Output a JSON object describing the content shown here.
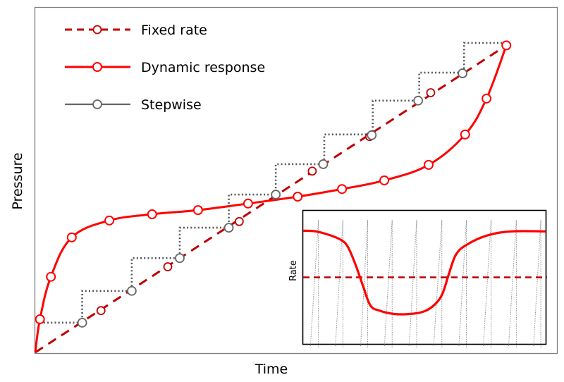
{
  "chart_data": {
    "type": "line",
    "title": "",
    "xlabel": "Time",
    "ylabel": "Pressure",
    "xlim": [
      0,
      100
    ],
    "ylim": [
      0,
      100
    ],
    "grid": false,
    "ticks": "none",
    "legend_position": "top-left",
    "colors": {
      "fixed": "#C00000",
      "dynamic": "#FF0000",
      "stepwise": "#666666",
      "stepwise_dots": "#555555",
      "frame": "#7F7F7F"
    },
    "series": [
      {
        "name": "Fixed rate",
        "style": "dashed",
        "line": [
          [
            0,
            0
          ],
          [
            90.3,
            88.9
          ]
        ],
        "markers": [
          [
            12.6,
            12.1
          ],
          [
            25.4,
            24.8
          ],
          [
            39.1,
            37.9
          ],
          [
            53.1,
            52.5
          ],
          [
            64.1,
            62.5
          ],
          [
            75.8,
            75.2
          ],
          [
            90.3,
            88.9
          ]
        ]
      },
      {
        "name": "Dynamic response",
        "style": "solid",
        "line": [
          [
            0,
            0
          ],
          [
            0.9,
            9.6
          ],
          [
            3.0,
            21.9
          ],
          [
            7.0,
            33.3
          ],
          [
            14.2,
            38.2
          ],
          [
            22.4,
            40.0
          ],
          [
            31.2,
            41.2
          ],
          [
            40.8,
            43.1
          ],
          [
            50.3,
            45.1
          ],
          [
            58.8,
            47.3
          ],
          [
            66.9,
            49.8
          ],
          [
            75.4,
            54.3
          ],
          [
            82.4,
            63.1
          ],
          [
            86.5,
            73.5
          ],
          [
            90.3,
            88.9
          ]
        ],
        "markers": [
          [
            0.9,
            9.6
          ],
          [
            3.0,
            21.9
          ],
          [
            7.0,
            33.3
          ],
          [
            14.2,
            38.2
          ],
          [
            22.4,
            40.0
          ],
          [
            31.2,
            41.2
          ],
          [
            40.8,
            43.1
          ],
          [
            50.3,
            45.1
          ],
          [
            58.8,
            47.3
          ],
          [
            66.9,
            49.8
          ],
          [
            75.4,
            54.3
          ],
          [
            82.4,
            63.1
          ],
          [
            86.5,
            73.5
          ],
          [
            90.3,
            88.9
          ]
        ]
      },
      {
        "name": "Stepwise",
        "style": "dotted-steps",
        "steps": [
          [
            0.9,
            8.6
          ],
          [
            9.0,
            8.6
          ],
          [
            9.0,
            17.8
          ],
          [
            18.5,
            17.8
          ],
          [
            18.5,
            27.3
          ],
          [
            27.7,
            27.3
          ],
          [
            27.7,
            36.1
          ],
          [
            37.1,
            36.1
          ],
          [
            37.1,
            45.7
          ],
          [
            46.1,
            45.7
          ],
          [
            46.1,
            54.5
          ],
          [
            55.4,
            54.5
          ],
          [
            55.4,
            63.1
          ],
          [
            64.7,
            63.1
          ],
          [
            64.7,
            72.9
          ],
          [
            73.6,
            72.9
          ],
          [
            73.6,
            81.0
          ],
          [
            82.2,
            81.0
          ],
          [
            82.2,
            89.6
          ],
          [
            90.3,
            89.6
          ]
        ],
        "markers": [
          [
            9.0,
            8.6
          ],
          [
            18.5,
            17.8
          ],
          [
            27.7,
            27.3
          ],
          [
            37.1,
            36.1
          ],
          [
            46.1,
            45.7
          ],
          [
            55.2,
            54.5
          ],
          [
            64.5,
            62.9
          ],
          [
            73.4,
            72.9
          ],
          [
            81.9,
            80.8
          ]
        ]
      }
    ],
    "inset": {
      "type": "line",
      "ylabel": "Rate",
      "xlabel": "",
      "xlim": [
        0,
        100
      ],
      "ylim": [
        0,
        100
      ],
      "series": [
        {
          "name": "Fixed rate",
          "style": "dashed",
          "values": [
            [
              0,
              50
            ],
            [
              100,
              50
            ]
          ]
        },
        {
          "name": "Dynamic response",
          "style": "solid",
          "values": [
            [
              0,
              85
            ],
            [
              5.2,
              84.5
            ],
            [
              11.3,
              81.5
            ],
            [
              15.7,
              78
            ],
            [
              18.4,
              73
            ],
            [
              21.5,
              60
            ],
            [
              24.6,
              44
            ],
            [
              27.7,
              29
            ],
            [
              31.5,
              25
            ],
            [
              37.5,
              22.5
            ],
            [
              44,
              22.5
            ],
            [
              50,
              24.5
            ],
            [
              54.5,
              30
            ],
            [
              57.5,
              38
            ],
            [
              60,
              52
            ],
            [
              63,
              67
            ],
            [
              67.5,
              74.5
            ],
            [
              76,
              81.5
            ],
            [
              86,
              84.5
            ],
            [
              100,
              84.5
            ]
          ]
        },
        {
          "name": "Stepwise",
          "style": "dotted-sawtooth",
          "pulses": [
            {
              "base_x": 3.0,
              "peak_x": 6.3
            },
            {
              "base_x": 13.3,
              "peak_x": 16.4
            },
            {
              "base_x": 23.7,
              "peak_x": 26.6
            },
            {
              "base_x": 33.5,
              "peak_x": 36.7
            },
            {
              "base_x": 43.7,
              "peak_x": 46.8
            },
            {
              "base_x": 53.8,
              "peak_x": 57.2
            },
            {
              "base_x": 64.2,
              "peak_x": 67.3
            },
            {
              "base_x": 74.3,
              "peak_x": 77.5
            },
            {
              "base_x": 84.7,
              "peak_x": 87.9
            },
            {
              "base_x": 95.0,
              "peak_x": 98.0
            }
          ],
          "peak_y": 93
        }
      ]
    }
  }
}
